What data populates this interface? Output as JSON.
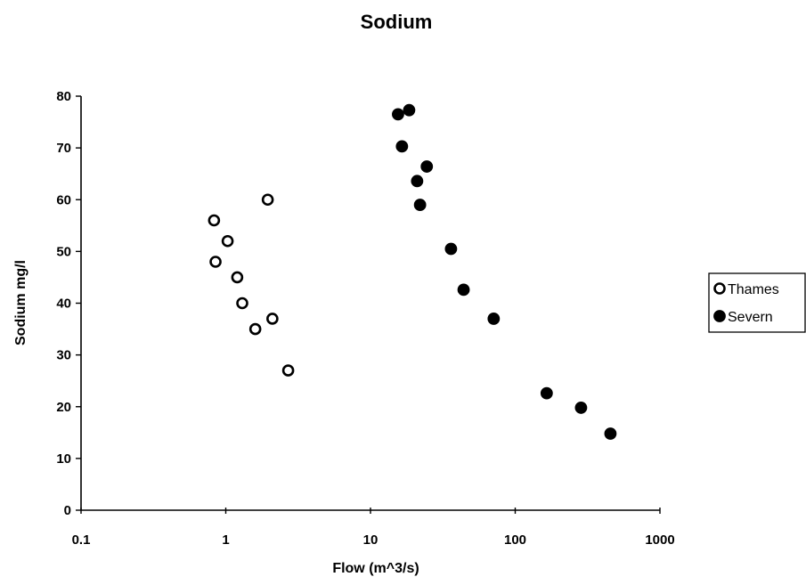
{
  "chart_data": {
    "type": "scatter",
    "title": "Sodium",
    "xlabel": "Flow (m^3/s)",
    "ylabel": "Sodium mg/l",
    "x_scale": "log",
    "xlim": [
      0.1,
      1000
    ],
    "ylim": [
      0,
      80
    ],
    "x_ticks": [
      {
        "value": 0.1,
        "label": "0.1"
      },
      {
        "value": 1,
        "label": "1"
      },
      {
        "value": 10,
        "label": "10"
      },
      {
        "value": 100,
        "label": "100"
      },
      {
        "value": 1000,
        "label": "1000"
      }
    ],
    "y_ticks": [
      {
        "value": 0,
        "label": "0"
      },
      {
        "value": 10,
        "label": "10"
      },
      {
        "value": 20,
        "label": "20"
      },
      {
        "value": 30,
        "label": "30"
      },
      {
        "value": 40,
        "label": "40"
      },
      {
        "value": 50,
        "label": "50"
      },
      {
        "value": 60,
        "label": "60"
      },
      {
        "value": 70,
        "label": "70"
      },
      {
        "value": 80,
        "label": "80"
      }
    ],
    "grid": false,
    "legend_position": "right",
    "series": [
      {
        "name": "Thames",
        "marker": "open-circle",
        "color": "#000000",
        "points": [
          {
            "x": 0.83,
            "y": 56
          },
          {
            "x": 0.85,
            "y": 48
          },
          {
            "x": 1.03,
            "y": 52
          },
          {
            "x": 1.2,
            "y": 45
          },
          {
            "x": 1.3,
            "y": 40
          },
          {
            "x": 1.6,
            "y": 35
          },
          {
            "x": 1.95,
            "y": 60
          },
          {
            "x": 2.1,
            "y": 37
          },
          {
            "x": 2.7,
            "y": 27
          }
        ]
      },
      {
        "name": "Severn",
        "marker": "filled-circle",
        "color": "#000000",
        "points": [
          {
            "x": 15.5,
            "y": 76.5
          },
          {
            "x": 18.5,
            "y": 77.3
          },
          {
            "x": 16.5,
            "y": 70.3
          },
          {
            "x": 24.5,
            "y": 66.4
          },
          {
            "x": 21,
            "y": 63.6
          },
          {
            "x": 22,
            "y": 59
          },
          {
            "x": 36,
            "y": 50.5
          },
          {
            "x": 44,
            "y": 42.6
          },
          {
            "x": 71,
            "y": 37
          },
          {
            "x": 165,
            "y": 22.6
          },
          {
            "x": 285,
            "y": 19.8
          },
          {
            "x": 455,
            "y": 14.8
          }
        ]
      }
    ]
  }
}
